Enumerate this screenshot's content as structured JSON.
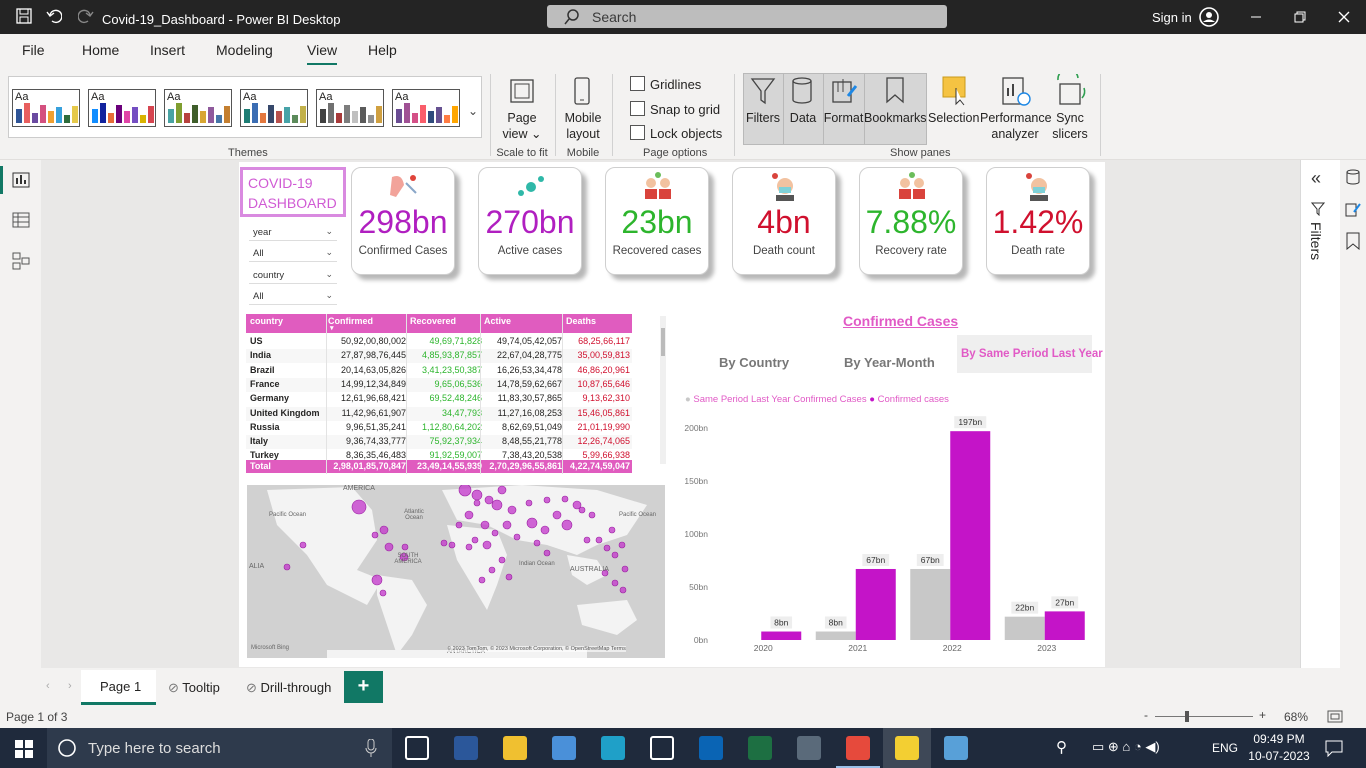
{
  "window": {
    "title": "Covid-19_Dashboard - Power BI Desktop",
    "search_placeholder": "Search",
    "sign_in": "Sign in"
  },
  "menu": [
    "File",
    "Home",
    "Insert",
    "Modeling",
    "View",
    "Help"
  ],
  "menu_active": "View",
  "ribbon": {
    "theme_preview_text": "Aa",
    "themes_label": "Themes",
    "page_view": "Page view",
    "scale_to_fit": "Scale to fit",
    "mobile_layout": "Mobile layout",
    "mobile_label": "Mobile",
    "gridlines": "Gridlines",
    "snap_to_grid": "Snap to grid",
    "lock_objects": "Lock objects",
    "page_options": "Page options",
    "filters": "Filters",
    "data": "Data",
    "format": "Format",
    "bookmarks": "Bookmarks",
    "selection": "Selection",
    "performance": "Performance analyzer",
    "sync_slicers": "Sync slicers",
    "show_panes": "Show panes"
  },
  "right_pane": {
    "filters": "Filters"
  },
  "dashboard": {
    "title": "COVID-19 DASHBOARD",
    "slicers": [
      {
        "label": "year",
        "value": "All"
      },
      {
        "label": "country",
        "value": "All"
      }
    ],
    "cards": [
      {
        "value": "298bn",
        "label": "Confirmed Cases",
        "color": "#b01fc0",
        "icon": "sneeze-icon"
      },
      {
        "value": "270bn",
        "label": "Active cases",
        "color": "#b01fc0",
        "icon": "virus-icon"
      },
      {
        "value": "23bn",
        "label": "Recovered cases",
        "color": "#2db52d",
        "icon": "recovered-people-icon"
      },
      {
        "value": "4bn",
        "label": "Death count",
        "color": "#d0102e",
        "icon": "masked-person-icon"
      },
      {
        "value": "7.88%",
        "label": "Recovery rate",
        "color": "#2db52d",
        "icon": "recovered-people-icon"
      },
      {
        "value": "1.42%",
        "label": "Death rate",
        "color": "#d0102e",
        "icon": "masked-person-icon"
      }
    ],
    "table": {
      "headers": [
        "country",
        "Confirmed",
        "Recovered",
        "Active",
        "Deaths"
      ],
      "rows": [
        [
          "US",
          "50,92,00,80,002",
          "49,69,71,828",
          "49,74,05,42,057",
          "68,25,66,117"
        ],
        [
          "India",
          "27,87,98,76,445",
          "4,85,93,87,857",
          "22,67,04,28,775",
          "35,00,59,813"
        ],
        [
          "Brazil",
          "20,14,63,05,826",
          "3,41,23,50,387",
          "16,26,53,34,478",
          "46,86,20,961"
        ],
        [
          "France",
          "14,99,12,34,849",
          "9,65,06,536",
          "14,78,59,62,667",
          "10,87,65,646"
        ],
        [
          "Germany",
          "12,61,96,68,421",
          "69,52,48,246",
          "11,83,30,57,865",
          "9,13,62,310"
        ],
        [
          "United Kingdom",
          "11,42,96,61,907",
          "34,47,793",
          "11,27,16,08,253",
          "15,46,05,861"
        ],
        [
          "Russia",
          "9,96,51,35,241",
          "1,12,80,64,202",
          "8,62,69,51,049",
          "21,01,19,990"
        ],
        [
          "Italy",
          "9,36,74,33,777",
          "75,92,37,934",
          "8,48,55,21,778",
          "12,26,74,065"
        ],
        [
          "Turkey",
          "8,36,35,46,483",
          "91,92,59,007",
          "7,38,43,20,538",
          "5,99,66,938"
        ]
      ],
      "total": [
        "Total",
        "2,98,01,85,70,847",
        "23,49,14,55,939",
        "2,70,29,96,55,861",
        "4,22,74,59,047"
      ],
      "header_color": "#e05cbf",
      "recovered_color": "#2db52d",
      "deaths_color": "#d0102e"
    },
    "map": {
      "labels": [
        "AMERICA",
        "Pacific Ocean",
        "Atlantic Ocean",
        "SOUTH AMERICA",
        "Indian Ocean",
        "AUSTRALIA",
        "Pacific Ocean",
        "ALIA",
        "ANTARCTICA"
      ],
      "attribution": "© 2023 TomTom, © 2023 Microsoft Corporation, © OpenStreetMap Terms",
      "brand": "Microsoft Bing"
    },
    "chart_title": "Confirmed Cases",
    "chart_tabs": [
      "By Country",
      "By Year-Month",
      "By Same Period Last Year"
    ],
    "chart_data": {
      "type": "bar",
      "categories": [
        "2020",
        "2021",
        "2022",
        "2023"
      ],
      "series": [
        {
          "name": "Same Period Last Year Confirmed Cases",
          "color": "#c8c8c8",
          "values": [
            0,
            8,
            67,
            22
          ],
          "labels": [
            "",
            "8bn",
            "67bn",
            "22bn"
          ]
        },
        {
          "name": "Confirmed cases",
          "color": "#c414c8",
          "values": [
            8,
            67,
            197,
            27
          ],
          "labels": [
            "8bn",
            "67bn",
            "197bn",
            "27bn"
          ]
        }
      ],
      "y_ticks": [
        "0bn",
        "50bn",
        "100bn",
        "150bn",
        "200bn"
      ],
      "ylim": [
        0,
        200
      ],
      "legend_position": "top-left"
    }
  },
  "page_tabs": [
    "Page 1",
    "Tooltip",
    "Drill-through"
  ],
  "status": {
    "page": "Page 1 of 3",
    "zoom": "68%"
  },
  "taskbar": {
    "search_placeholder": "Type here to search",
    "time": "09:49 PM",
    "date": "10-07-2023",
    "lang": "ENG"
  }
}
